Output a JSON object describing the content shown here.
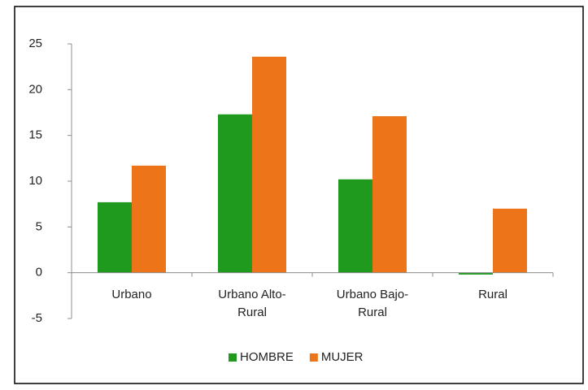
{
  "chart_data": {
    "type": "bar",
    "categories": [
      "Urbano",
      "Urbano Alto-Rural",
      "Urbano Bajo-Rural",
      "Rural"
    ],
    "series": [
      {
        "name": "HOMBRE",
        "color": "#1f9a1f",
        "values": [
          7.7,
          17.3,
          10.2,
          -0.2
        ]
      },
      {
        "name": "MUJER",
        "color": "#ee7419",
        "values": [
          11.7,
          23.6,
          17.1,
          7.0
        ]
      }
    ],
    "ylim": [
      -5,
      25
    ],
    "yticks": [
      -5,
      0,
      5,
      10,
      15,
      20,
      25
    ],
    "grid": false,
    "legend": "bottom"
  }
}
